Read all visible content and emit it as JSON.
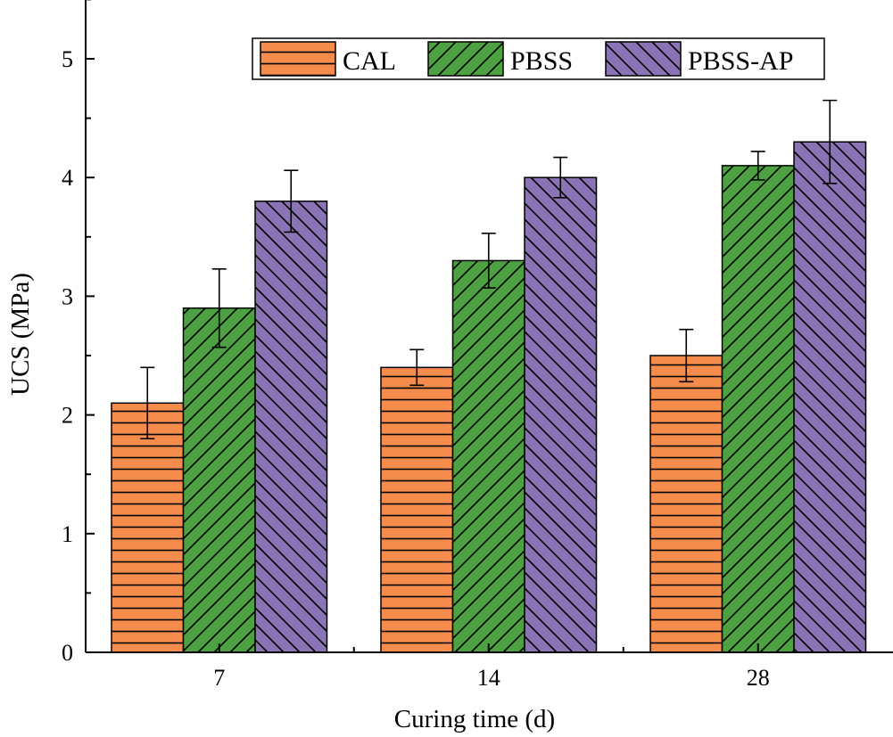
{
  "chart_data": {
    "type": "bar",
    "title": "",
    "xlabel": "Curing time (d)",
    "ylabel": "UCS (MPa)",
    "categories": [
      "7",
      "14",
      "28"
    ],
    "ylim": [
      0,
      5.5
    ],
    "yticks": [
      0,
      1,
      2,
      3,
      4,
      5
    ],
    "grid": false,
    "legend_position": "top-right",
    "series": [
      {
        "name": "CAL",
        "values": [
          2.1,
          2.4,
          2.5
        ],
        "errors": [
          0.3,
          0.15,
          0.22
        ],
        "color": "#f58c4c",
        "pattern": "horizontal-lines"
      },
      {
        "name": "PBSS",
        "values": [
          2.9,
          3.3,
          4.1
        ],
        "errors": [
          0.33,
          0.23,
          0.12
        ],
        "color": "#4ea142",
        "pattern": "forward-diagonal"
      },
      {
        "name": "PBSS-AP",
        "values": [
          3.8,
          4.0,
          4.3
        ],
        "errors": [
          0.26,
          0.17,
          0.35
        ],
        "color": "#8b74b5",
        "pattern": "back-diagonal"
      }
    ]
  }
}
